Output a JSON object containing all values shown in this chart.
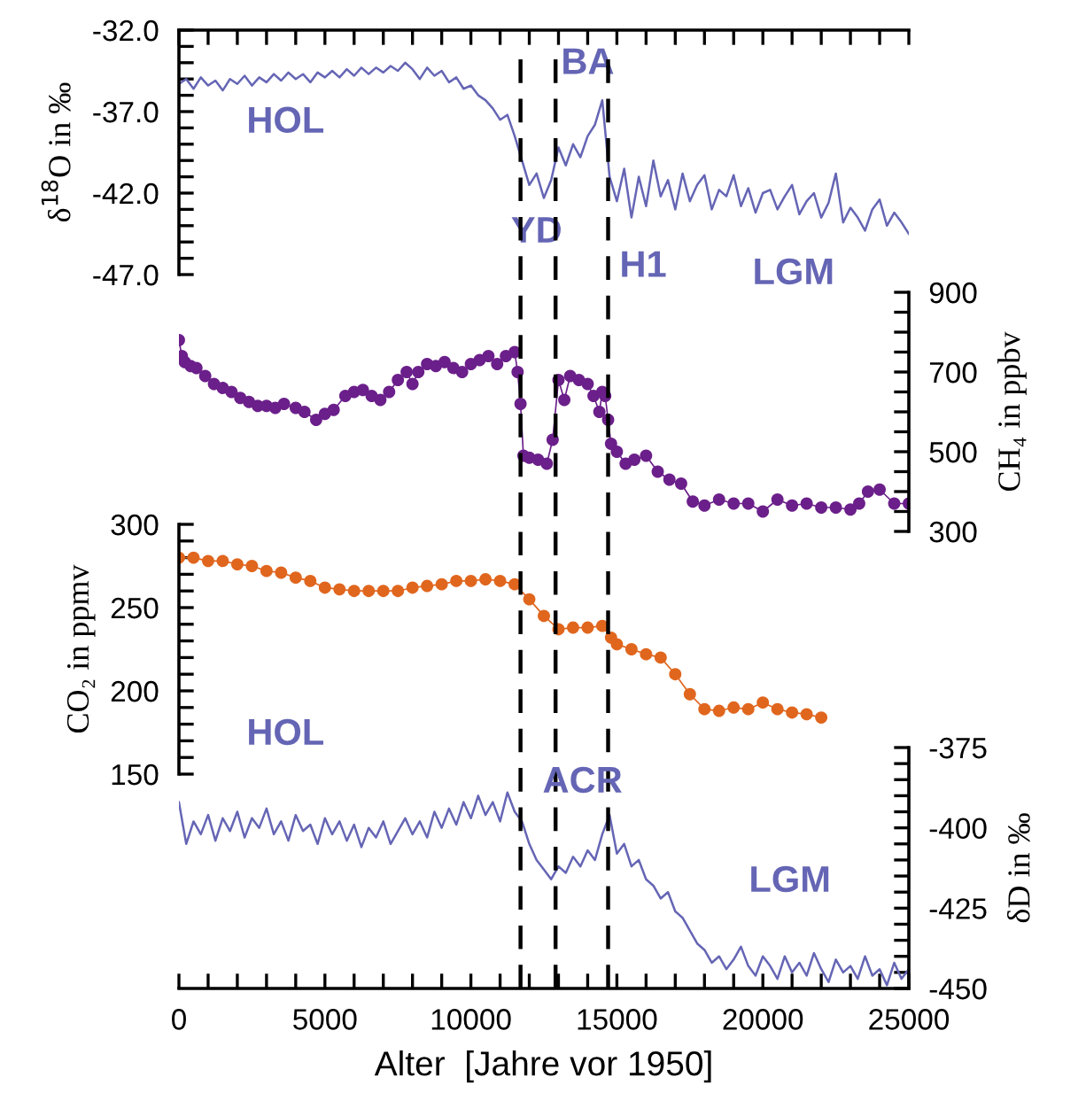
{
  "chart_data": [
    {
      "type": "line",
      "ylabel": "δ$^{18}$O in ‰",
      "xlim": [
        0,
        25000
      ],
      "tick_labels": "y",
      "ylim": [
        -47,
        -32
      ],
      "yticks": [
        {
          "value": -32,
          "label": "-32.0"
        },
        {
          "value": -33,
          "label": null
        },
        {
          "value": -34,
          "label": null
        },
        {
          "value": -35,
          "label": null
        },
        {
          "value": -36,
          "label": null
        },
        {
          "value": -37,
          "label": "-37.0"
        },
        {
          "value": -38,
          "label": null
        },
        {
          "value": -39,
          "label": null
        },
        {
          "value": -40,
          "label": null
        },
        {
          "value": -41,
          "label": null
        },
        {
          "value": -42,
          "label": "-42.0"
        },
        {
          "value": -43,
          "label": null
        },
        {
          "value": -44,
          "label": null
        },
        {
          "value": -45,
          "label": null
        },
        {
          "value": -46,
          "label": null
        },
        {
          "value": -47,
          "label": "-47.0"
        }
      ],
      "x": [
        0,
        250,
        500,
        750,
        1000,
        1250,
        1500,
        1750,
        2000,
        2250,
        2500,
        2750,
        3000,
        3250,
        3500,
        3750,
        4000,
        4250,
        4500,
        4750,
        5000,
        5250,
        5500,
        5750,
        6000,
        6250,
        6500,
        6750,
        7000,
        7250,
        7500,
        7750,
        8000,
        8250,
        8500,
        8750,
        9000,
        9250,
        9500,
        9750,
        10000,
        10250,
        10500,
        10750,
        11000,
        11250,
        11500,
        11750,
        12000,
        12250,
        12500,
        12750,
        13000,
        13250,
        13500,
        13750,
        14000,
        14250,
        14500,
        14750,
        15000,
        15250,
        15500,
        15750,
        16000,
        16250,
        16500,
        16750,
        17000,
        17250,
        17500,
        17750,
        18000,
        18250,
        18500,
        18750,
        19000,
        19250,
        19500,
        19750,
        20000,
        20250,
        20500,
        20750,
        21000,
        21250,
        21500,
        21750,
        22000,
        22250,
        22500,
        22750,
        23000,
        23250,
        23500,
        23750,
        24000,
        24250,
        24500,
        24750,
        25000
      ],
      "series": [
        {
          "color": "#6565b5",
          "values": [
            -35.3,
            -35.0,
            -35.6,
            -34.9,
            -35.4,
            -35.1,
            -35.7,
            -35.0,
            -35.3,
            -34.8,
            -35.4,
            -34.9,
            -35.2,
            -34.7,
            -35.1,
            -34.6,
            -35.0,
            -34.7,
            -35.2,
            -34.6,
            -34.9,
            -34.5,
            -34.9,
            -34.4,
            -34.8,
            -34.3,
            -34.7,
            -34.3,
            -34.6,
            -34.2,
            -34.5,
            -34.0,
            -34.4,
            -35.0,
            -34.3,
            -34.8,
            -34.5,
            -35.2,
            -34.9,
            -35.6,
            -35.4,
            -36.0,
            -36.3,
            -36.8,
            -37.5,
            -37.2,
            -38.5,
            -40.0,
            -41.5,
            -40.8,
            -42.3,
            -41.2,
            -39.2,
            -40.3,
            -39.0,
            -39.8,
            -38.5,
            -37.8,
            -36.3,
            -41.0,
            -42.5,
            -40.5,
            -43.5,
            -41.0,
            -42.8,
            -40.0,
            -42.2,
            -41.2,
            -43.0,
            -40.8,
            -42.5,
            -41.5,
            -40.9,
            -43.0,
            -41.8,
            -42.2,
            -40.9,
            -42.8,
            -41.7,
            -43.2,
            -42.0,
            -41.8,
            -43.0,
            -42.2,
            -41.5,
            -43.3,
            -42.5,
            -42.0,
            -43.5,
            -42.6,
            -40.8,
            -43.8,
            -42.9,
            -43.5,
            -44.3,
            -43.0,
            -42.4,
            -44.0,
            -43.2,
            -43.8,
            -44.5
          ]
        }
      ],
      "marker": "none",
      "annotations": [
        "HOL",
        "BA",
        "YD",
        "H1",
        "LGM"
      ]
    },
    {
      "type": "line",
      "y2label": "CH₄ in ppbv",
      "xlim": [
        0,
        25000
      ],
      "y2lim": [
        300,
        900
      ],
      "y2ticks": [
        300,
        {
          "value": 350,
          "label": null
        },
        {
          "value": 400,
          "label": null
        },
        {
          "value": 450,
          "label": null
        },
        500,
        {
          "value": 550,
          "label": null
        },
        {
          "value": 600,
          "label": null
        },
        {
          "value": 650,
          "label": null
        },
        700,
        {
          "value": 750,
          "label": null
        },
        {
          "value": 800,
          "label": null
        },
        {
          "value": 850,
          "label": null
        },
        900
      ],
      "x": [
        0,
        100,
        200,
        400,
        600,
        900,
        1200,
        1500,
        1800,
        2100,
        2400,
        2700,
        3000,
        3300,
        3600,
        4000,
        4300,
        4700,
        5000,
        5300,
        5700,
        6000,
        6300,
        6600,
        6900,
        7200,
        7500,
        7800,
        8000,
        8200,
        8500,
        8800,
        9100,
        9400,
        9700,
        10000,
        10300,
        10600,
        10900,
        11200,
        11500,
        11600,
        11700,
        11800,
        12000,
        12300,
        12600,
        12800,
        13000,
        13200,
        13400,
        13700,
        14000,
        14200,
        14400,
        14500,
        14600,
        14700,
        14800,
        15000,
        15300,
        15600,
        16000,
        16400,
        16800,
        17200,
        17600,
        18000,
        18500,
        19000,
        19500,
        20000,
        20500,
        21000,
        21500,
        22000,
        22500,
        23000,
        23300,
        23600,
        24000,
        24500,
        25000
      ],
      "series": [
        {
          "axis": "y2",
          "color": "#6b1f8a",
          "values": [
            780,
            740,
            725,
            715,
            710,
            690,
            670,
            660,
            650,
            635,
            625,
            615,
            615,
            610,
            620,
            610,
            600,
            580,
            595,
            605,
            640,
            650,
            655,
            640,
            630,
            650,
            680,
            700,
            670,
            700,
            720,
            715,
            725,
            710,
            700,
            720,
            730,
            740,
            720,
            740,
            750,
            700,
            620,
            490,
            485,
            480,
            470,
            530,
            680,
            630,
            690,
            680,
            670,
            640,
            600,
            650,
            640,
            580,
            520,
            500,
            470,
            480,
            490,
            450,
            430,
            420,
            375,
            365,
            380,
            370,
            370,
            350,
            380,
            365,
            370,
            360,
            360,
            355,
            370,
            400,
            405,
            370,
            370
          ]
        }
      ],
      "marker": "circle"
    },
    {
      "type": "line",
      "ylabel": "CO₂ in ppmv",
      "xlim": [
        0,
        25000
      ],
      "ylim": [
        150,
        300
      ],
      "yticks": [
        150,
        {
          "value": 160,
          "label": null
        },
        {
          "value": 170,
          "label": null
        },
        {
          "value": 180,
          "label": null
        },
        {
          "value": 190,
          "label": null
        },
        200,
        {
          "value": 210,
          "label": null
        },
        {
          "value": 220,
          "label": null
        },
        {
          "value": 230,
          "label": null
        },
        {
          "value": 240,
          "label": null
        },
        250,
        {
          "value": 260,
          "label": null
        },
        {
          "value": 270,
          "label": null
        },
        {
          "value": 280,
          "label": null
        },
        {
          "value": 290,
          "label": null
        },
        300
      ],
      "x": [
        0,
        500,
        1000,
        1500,
        2000,
        2500,
        3000,
        3500,
        4000,
        4500,
        5000,
        5500,
        6000,
        6500,
        7000,
        7500,
        8000,
        8500,
        9000,
        9500,
        10000,
        10500,
        11000,
        11500,
        12000,
        12500,
        13000,
        13500,
        14000,
        14500,
        14800,
        15000,
        15500,
        16000,
        16500,
        17000,
        17500,
        18000,
        18500,
        19000,
        19500,
        20000,
        20500,
        21000,
        21500,
        22000
      ],
      "series": [
        {
          "color": "#e0661e",
          "values": [
            280,
            280,
            278,
            278,
            276,
            275,
            272,
            271,
            268,
            266,
            262,
            261,
            260,
            260,
            260,
            260,
            262,
            263,
            264,
            266,
            266,
            267,
            266,
            264,
            255,
            245,
            237,
            238,
            238,
            239,
            232,
            228,
            225,
            222,
            220,
            210,
            198,
            189,
            188,
            190,
            189,
            193,
            189,
            187,
            186,
            184
          ]
        }
      ],
      "marker": "circle",
      "annotations": [
        "HOL"
      ]
    },
    {
      "type": "line",
      "xlabel": "Alter  [Jahre vor 1950]",
      "y2label": "δD in ‰",
      "xlim": [
        0,
        25000
      ],
      "xticks": [
        0,
        {
          "value": 1000,
          "label": null
        },
        {
          "value": 2000,
          "label": null
        },
        {
          "value": 3000,
          "label": null
        },
        {
          "value": 4000,
          "label": null
        },
        5000,
        {
          "value": 6000,
          "label": null
        },
        {
          "value": 7000,
          "label": null
        },
        {
          "value": 8000,
          "label": null
        },
        {
          "value": 9000,
          "label": null
        },
        10000,
        {
          "value": 11000,
          "label": null
        },
        {
          "value": 12000,
          "label": null
        },
        {
          "value": 13000,
          "label": null
        },
        {
          "value": 14000,
          "label": null
        },
        15000,
        {
          "value": 16000,
          "label": null
        },
        {
          "value": 17000,
          "label": null
        },
        {
          "value": 18000,
          "label": null
        },
        {
          "value": 19000,
          "label": null
        },
        20000,
        {
          "value": 21000,
          "label": null
        },
        {
          "value": 22000,
          "label": null
        },
        {
          "value": 23000,
          "label": null
        },
        {
          "value": 24000,
          "label": null
        },
        25000
      ],
      "y2lim": [
        -450,
        -375
      ],
      "y2ticks": [
        -450,
        {
          "value": -445,
          "label": null
        },
        {
          "value": -440,
          "label": null
        },
        {
          "value": -435,
          "label": null
        },
        {
          "value": -430,
          "label": null
        },
        -425,
        {
          "value": -420,
          "label": null
        },
        {
          "value": -415,
          "label": null
        },
        {
          "value": -410,
          "label": null
        },
        {
          "value": -405,
          "label": null
        },
        -400,
        {
          "value": -395,
          "label": null
        },
        {
          "value": -390,
          "label": null
        },
        {
          "value": -385,
          "label": null
        },
        {
          "value": -380,
          "label": null
        },
        -375
      ],
      "x": [
        0,
        250,
        500,
        750,
        1000,
        1250,
        1500,
        1750,
        2000,
        2250,
        2500,
        2750,
        3000,
        3250,
        3500,
        3750,
        4000,
        4250,
        4500,
        4750,
        5000,
        5250,
        5500,
        5750,
        6000,
        6250,
        6500,
        6750,
        7000,
        7250,
        7500,
        7750,
        8000,
        8250,
        8500,
        8750,
        9000,
        9250,
        9500,
        9750,
        10000,
        10250,
        10500,
        10750,
        11000,
        11250,
        11500,
        11750,
        12000,
        12250,
        12500,
        12750,
        13000,
        13250,
        13500,
        13750,
        14000,
        14250,
        14500,
        14750,
        15000,
        15250,
        15500,
        15750,
        16000,
        16250,
        16500,
        16750,
        17000,
        17250,
        17500,
        17750,
        18000,
        18250,
        18500,
        18750,
        19000,
        19250,
        19500,
        19750,
        20000,
        20250,
        20500,
        20750,
        21000,
        21250,
        21500,
        21750,
        22000,
        22250,
        22500,
        22750,
        23000,
        23250,
        23500,
        23750,
        24000,
        24250,
        24500,
        24750,
        25000
      ],
      "series": [
        {
          "axis": "y2",
          "color": "#6565b5",
          "values": [
            -392,
            -405,
            -398,
            -402,
            -396,
            -404,
            -397,
            -401,
            -395,
            -403,
            -397,
            -400,
            -394,
            -402,
            -398,
            -404,
            -396,
            -401,
            -399,
            -405,
            -397,
            -402,
            -398,
            -404,
            -399,
            -406,
            -400,
            -403,
            -398,
            -405,
            -401,
            -397,
            -402,
            -398,
            -403,
            -395,
            -400,
            -394,
            -399,
            -392,
            -397,
            -390,
            -396,
            -392,
            -398,
            -389,
            -395,
            -398,
            -405,
            -410,
            -413,
            -416,
            -412,
            -414,
            -409,
            -412,
            -407,
            -410,
            -402,
            -396,
            -408,
            -405,
            -412,
            -410,
            -416,
            -418,
            -422,
            -420,
            -426,
            -428,
            -432,
            -436,
            -438,
            -442,
            -440,
            -444,
            -441,
            -437,
            -443,
            -446,
            -440,
            -443,
            -447,
            -440,
            -445,
            -442,
            -446,
            -439,
            -444,
            -448,
            -441,
            -445,
            -443,
            -447,
            -440,
            -446,
            -444,
            -449,
            -442,
            -447,
            -444
          ]
        }
      ],
      "marker": "none",
      "ref_lines": [
        {
          "axis": "x",
          "value": 11700,
          "color": "#000000",
          "line_style": "dashed"
        },
        {
          "axis": "x",
          "value": 12900,
          "color": "#000000",
          "line_style": "dashed"
        },
        {
          "axis": "x",
          "value": 14700,
          "color": "#000000",
          "line_style": "dashed"
        }
      ],
      "annotations": [
        "ACR",
        "LGM"
      ]
    }
  ]
}
